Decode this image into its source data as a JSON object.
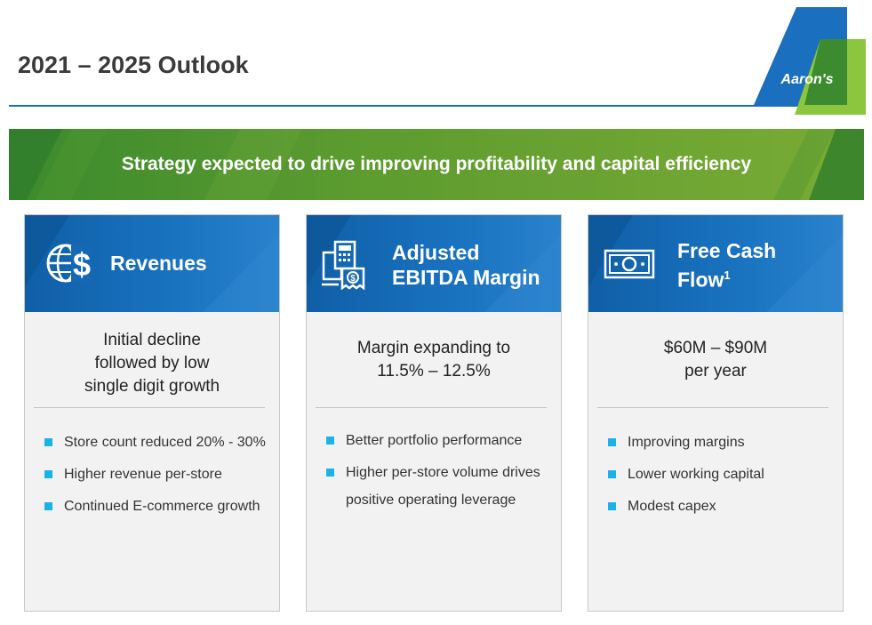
{
  "header": {
    "title": "2021 – 2025 Outlook",
    "logo_text": "Aaron's"
  },
  "banner": {
    "text": "Strategy expected to drive improving profitability and capital efficiency"
  },
  "cards": [
    {
      "icon": "globe-dollar-icon",
      "title_lines": [
        "Revenues"
      ],
      "title_sup": "",
      "headline_lines": [
        "Initial decline",
        "followed by low",
        "single digit growth"
      ],
      "bullets": [
        "Store count reduced 20% - 30%",
        "Higher revenue per-store",
        "Continued E-commerce growth"
      ]
    },
    {
      "icon": "calculator-invoice-icon",
      "title_lines": [
        "Adjusted",
        "EBITDA Margin"
      ],
      "title_sup": "",
      "headline_lines": [
        "Margin expanding to",
        "11.5% – 12.5%"
      ],
      "bullets": [
        "Better portfolio performance",
        "Higher per-store volume drives positive operating leverage"
      ]
    },
    {
      "icon": "banknote-icon",
      "title_lines": [
        "Free Cash",
        "Flow"
      ],
      "title_sup": "1",
      "headline_lines": [
        "$60M – $90M",
        "per year"
      ],
      "bullets": [
        "Improving margins",
        "Lower working capital",
        "Modest capex"
      ]
    }
  ],
  "colors": {
    "blue": "#1a6fbe",
    "green": "#5c9b2f",
    "bullet": "#1cb2e8"
  }
}
